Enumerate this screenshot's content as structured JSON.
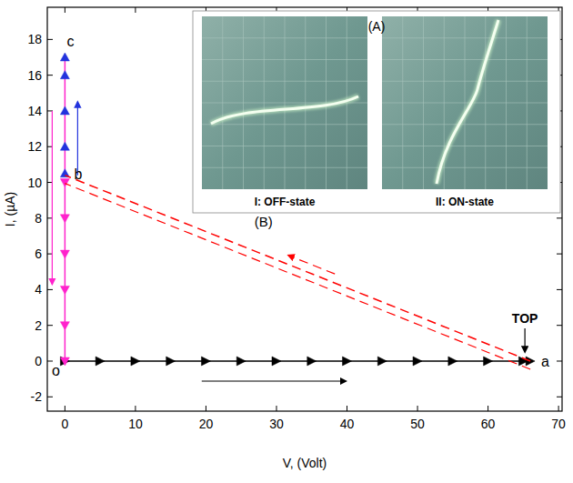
{
  "chart_data": {
    "type": "scatter",
    "x_label": "V, (Volt)",
    "y_label": "I, (µA)",
    "xlim": [
      -2.5,
      70.5
    ],
    "ylim": [
      -2.8,
      19.8
    ],
    "xticks": [
      0,
      10,
      20,
      30,
      40,
      50,
      60,
      70
    ],
    "yticks": [
      -2,
      0,
      2,
      4,
      6,
      8,
      10,
      12,
      14,
      16,
      18
    ],
    "grid": false,
    "annotations": [
      "o",
      "a",
      "b",
      "c",
      "TOP",
      "(B)"
    ],
    "inset": {
      "label": "(A)",
      "panels": [
        "I: OFF-state",
        "II: ON-state"
      ]
    },
    "series": [
      {
        "type": "line",
        "color": "#000000",
        "marker": "triangle-right",
        "line_style": "solid",
        "x": [
          0,
          5,
          10,
          15,
          20,
          25,
          30,
          35,
          40,
          45,
          50,
          55,
          60,
          65,
          66
        ],
        "values": [
          0,
          0,
          0,
          0,
          0,
          0,
          0,
          0,
          0,
          0,
          0,
          0,
          0,
          0,
          0
        ]
      },
      {
        "type": "line",
        "color": "#2233dd",
        "marker": "triangle-up",
        "line_style": "solid",
        "x": [
          0,
          0,
          0,
          0,
          0
        ],
        "values": [
          10.5,
          12,
          14,
          16,
          17
        ]
      },
      {
        "type": "line",
        "color": "#ff22cc",
        "marker": "triangle-down",
        "line_style": "solid",
        "x": [
          0,
          0,
          0,
          0,
          0,
          0
        ],
        "values": [
          10,
          8,
          6,
          4,
          2,
          0
        ]
      },
      {
        "type": "line",
        "color": "#ff0000",
        "marker": "none",
        "line_style": "dashed",
        "x": [
          66,
          0
        ],
        "values": [
          0,
          10.4
        ]
      }
    ]
  }
}
